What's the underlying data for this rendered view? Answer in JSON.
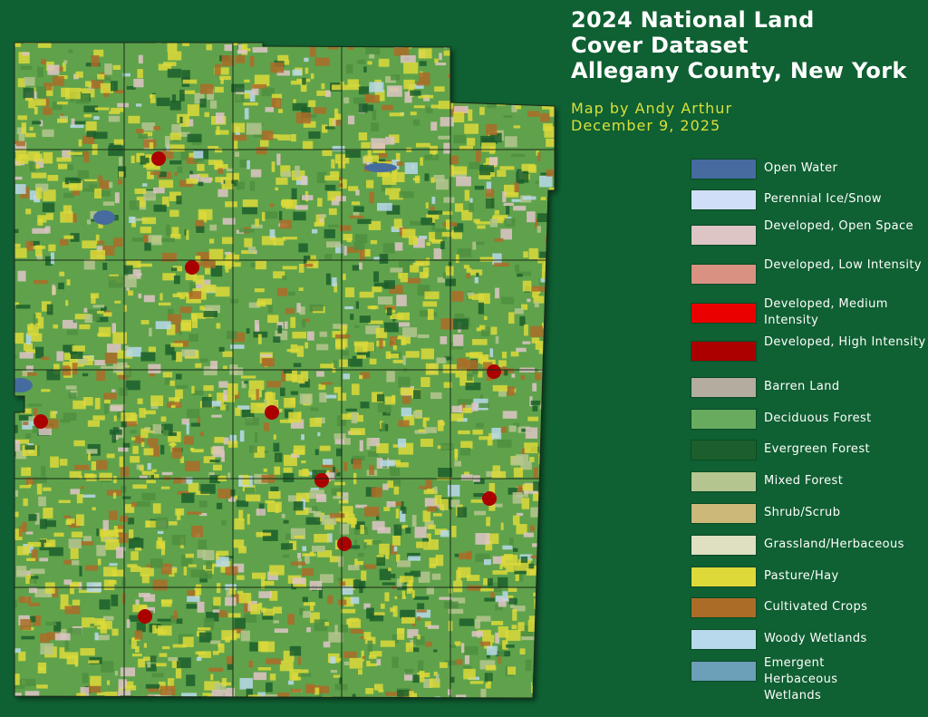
{
  "title": {
    "line1": "2024 National Land",
    "line2": "Cover Dataset",
    "line3": "Allegany County, New York"
  },
  "credit": "Map by Andy Arthur",
  "date": "December 9, 2025",
  "legend": [
    {
      "label": "Open Water",
      "color": "#466b9f"
    },
    {
      "label": "Perennial Ice/Snow",
      "color": "#d1def8"
    },
    {
      "label": "Developed, Open Space",
      "color": "#dec5c5"
    },
    {
      "label": "Developed, Low Intensity",
      "color": "#d99282"
    },
    {
      "label": "Developed, Medium Intensity",
      "color": "#eb0000"
    },
    {
      "label": "Developed, High Intensity",
      "color": "#ab0000"
    },
    {
      "label": "Barren Land",
      "color": "#b3ac9f"
    },
    {
      "label": "Deciduous Forest",
      "color": "#68ab5f"
    },
    {
      "label": "Evergreen Forest",
      "color": "#1c5f2c"
    },
    {
      "label": "Mixed Forest",
      "color": "#b5c58f"
    },
    {
      "label": "Shrub/Scrub",
      "color": "#ccb879"
    },
    {
      "label": "Grassland/Herbaceous",
      "color": "#dfdfc2"
    },
    {
      "label": "Pasture/Hay",
      "color": "#dcd939"
    },
    {
      "label": "Cultivated Crops",
      "color": "#ab6c28"
    },
    {
      "label": "Woody Wetlands",
      "color": "#b8d9eb"
    },
    {
      "label": "Emergent Herbaceous Wetlands",
      "color": "#6c9fb8"
    }
  ]
}
